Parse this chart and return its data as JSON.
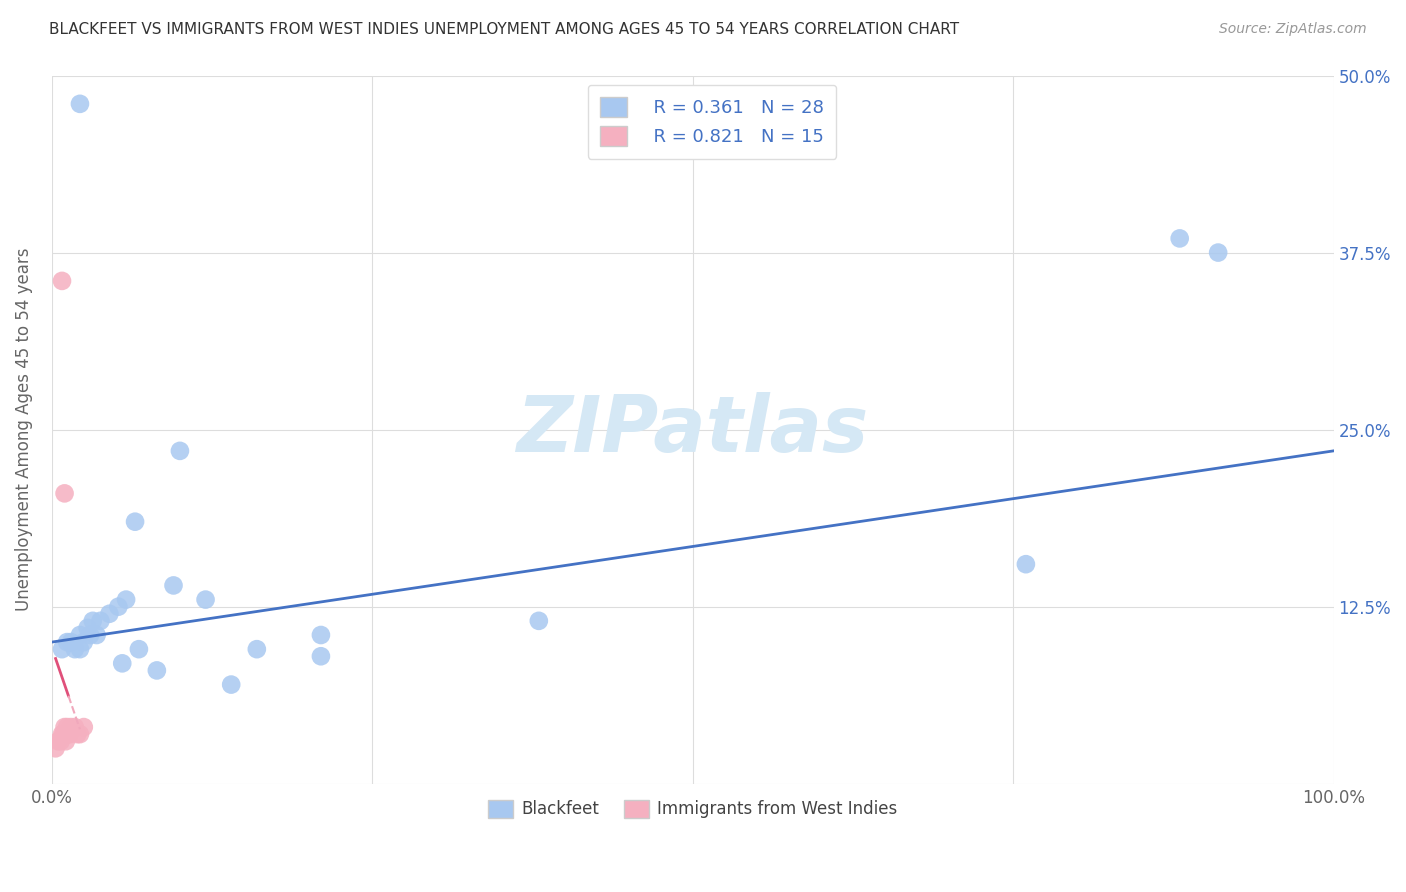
{
  "title": "BLACKFEET VS IMMIGRANTS FROM WEST INDIES UNEMPLOYMENT AMONG AGES 45 TO 54 YEARS CORRELATION CHART",
  "source": "Source: ZipAtlas.com",
  "ylabel": "Unemployment Among Ages 45 to 54 years",
  "xlim": [
    0,
    1.0
  ],
  "ylim": [
    0,
    0.5
  ],
  "xtick_positions": [
    0.0,
    0.25,
    0.5,
    0.75,
    1.0
  ],
  "xticklabels": [
    "0.0%",
    "",
    "",
    "",
    "100.0%"
  ],
  "ytick_positions": [
    0.0,
    0.125,
    0.25,
    0.375,
    0.5
  ],
  "yticklabels_right": [
    "",
    "12.5%",
    "25.0%",
    "37.5%",
    "50.0%"
  ],
  "blackfeet_x": [
    0.018,
    0.022,
    0.028,
    0.032,
    0.038,
    0.045,
    0.052,
    0.058,
    0.068,
    0.082,
    0.095,
    0.12,
    0.16,
    0.21,
    0.38,
    0.76,
    0.88,
    0.91,
    0.008,
    0.012,
    0.015,
    0.022,
    0.025,
    0.03,
    0.035,
    0.055,
    0.14,
    0.21
  ],
  "blackfeet_y": [
    0.095,
    0.105,
    0.11,
    0.115,
    0.115,
    0.12,
    0.125,
    0.13,
    0.095,
    0.08,
    0.14,
    0.13,
    0.095,
    0.105,
    0.115,
    0.155,
    0.385,
    0.375,
    0.095,
    0.1,
    0.1,
    0.095,
    0.1,
    0.105,
    0.105,
    0.085,
    0.07,
    0.09
  ],
  "blackfeet_outlier_x": [
    0.022
  ],
  "blackfeet_outlier_y": [
    0.48
  ],
  "blackfeet_high1_x": [
    0.1
  ],
  "blackfeet_high1_y": [
    0.235
  ],
  "blackfeet_high2_x": [
    0.065
  ],
  "blackfeet_high2_y": [
    0.185
  ],
  "west_indies_x": [
    0.003,
    0.005,
    0.007,
    0.008,
    0.009,
    0.01,
    0.011,
    0.012,
    0.013,
    0.014,
    0.015,
    0.018,
    0.02,
    0.022,
    0.025
  ],
  "west_indies_y": [
    0.025,
    0.03,
    0.03,
    0.035,
    0.035,
    0.04,
    0.03,
    0.04,
    0.035,
    0.035,
    0.04,
    0.04,
    0.035,
    0.035,
    0.04
  ],
  "west_indies_outlier_x": [
    0.008
  ],
  "west_indies_outlier_y": [
    0.355
  ],
  "west_indies_high_x": [
    0.01
  ],
  "west_indies_high_y": [
    0.205
  ],
  "blackfeet_color": "#a8c8f0",
  "west_indies_color": "#f5b0c0",
  "blackfeet_line_color": "#4472c4",
  "west_indies_line_color": "#e0507a",
  "west_indies_dashed_color": "#f0a8bc",
  "R_blackfeet": 0.361,
  "N_blackfeet": 28,
  "R_west_indies": 0.821,
  "N_west_indies": 15,
  "legend_label_blackfeet": "Blackfeet",
  "legend_label_west_indies": "Immigrants from West Indies",
  "watermark_text": "ZIPatlas",
  "watermark_color": "#d5e8f5",
  "background_color": "#ffffff"
}
